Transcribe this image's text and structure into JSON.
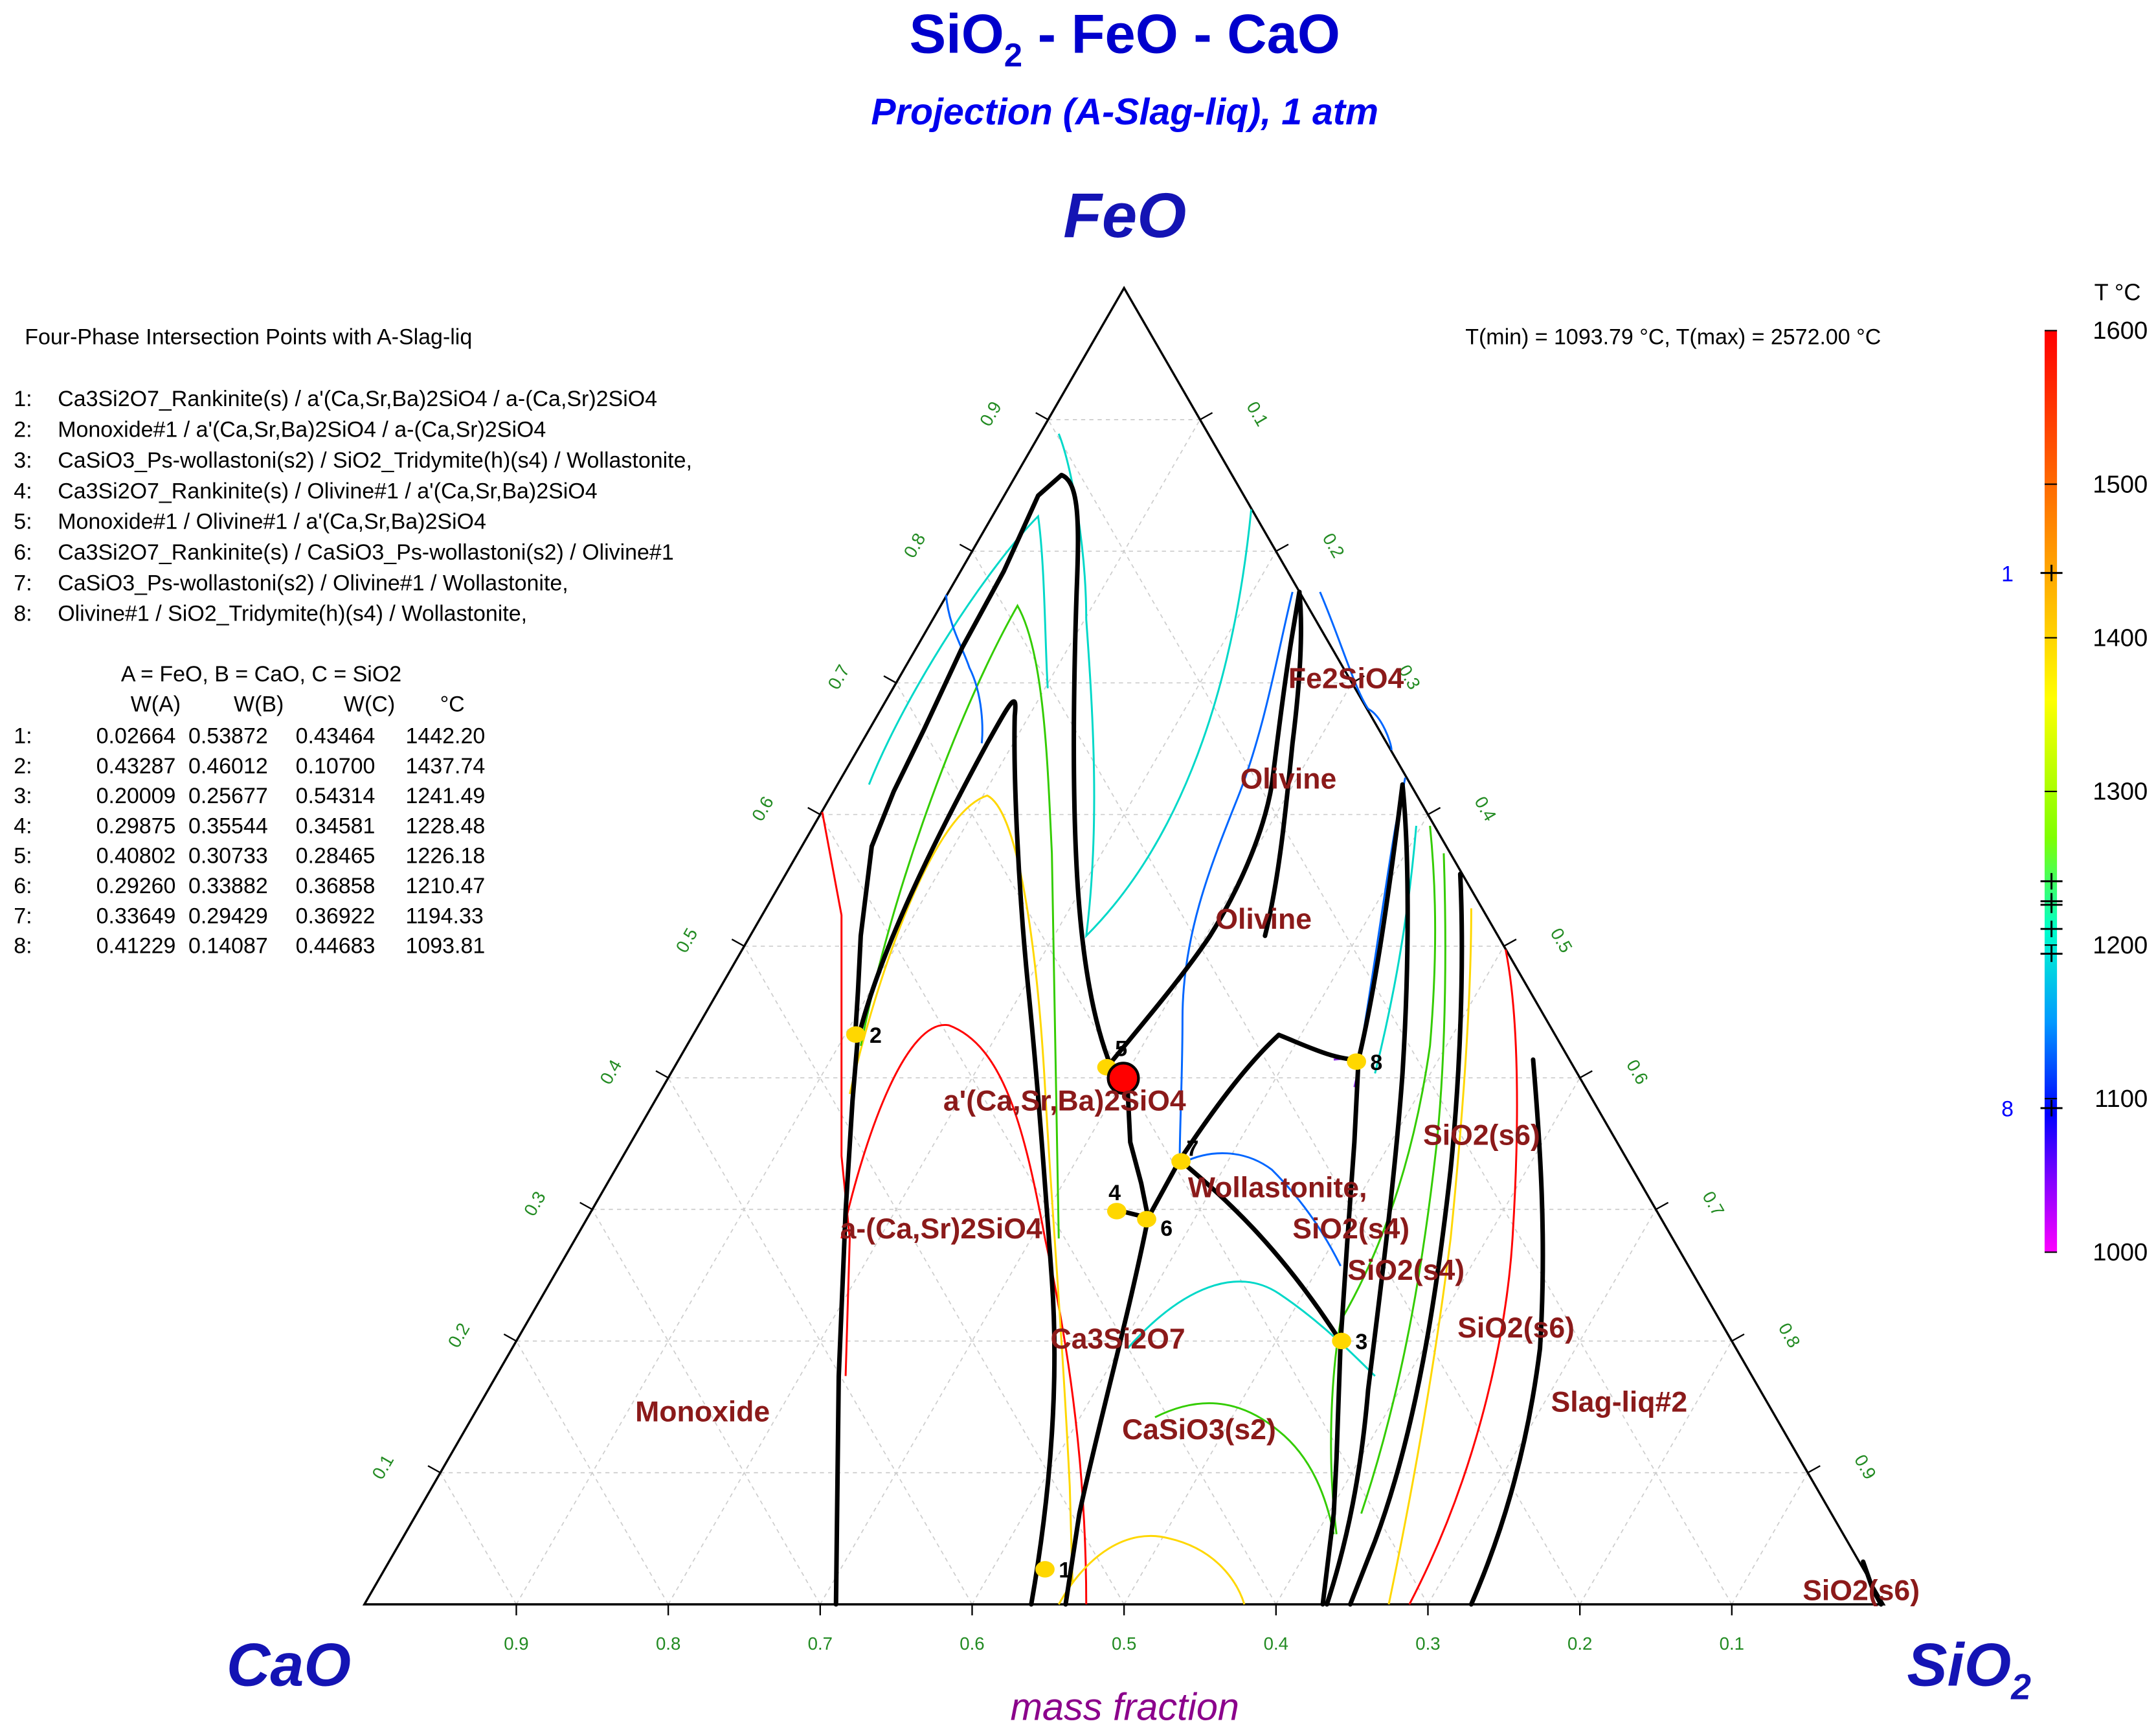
{
  "title": {
    "p1": "SiO",
    "sub1": "2",
    "p2": " - FeO - CaO"
  },
  "subtitle": "Projection (A-Slag-liq), 1 atm",
  "corners": {
    "top": "FeO",
    "left": "CaO",
    "right": "SiO",
    "right_sub": "2"
  },
  "axis_label": "mass fraction",
  "temp_range": "T(min) = 1093.79 °C, T(max) = 2572.00 °C",
  "legend": {
    "title": "Four-Phase Intersection Points with A-Slag-liq",
    "items": [
      {
        "num": "1:",
        "text": "Ca3Si2O7_Rankinite(s) / a'(Ca,Sr,Ba)2SiO4 / a-(Ca,Sr)2SiO4"
      },
      {
        "num": "2:",
        "text": "Monoxide#1 / a'(Ca,Sr,Ba)2SiO4 / a-(Ca,Sr)2SiO4"
      },
      {
        "num": "3:",
        "text": "CaSiO3_Ps-wollastoni(s2) / SiO2_Tridymite(h)(s4) / Wollastonite,"
      },
      {
        "num": "4:",
        "text": "Ca3Si2O7_Rankinite(s) / Olivine#1 / a'(Ca,Sr,Ba)2SiO4"
      },
      {
        "num": "5:",
        "text": "Monoxide#1 / Olivine#1 / a'(Ca,Sr,Ba)2SiO4"
      },
      {
        "num": "6:",
        "text": "Ca3Si2O7_Rankinite(s) / CaSiO3_Ps-wollastoni(s2) / Olivine#1"
      },
      {
        "num": "7:",
        "text": "CaSiO3_Ps-wollastoni(s2) / Olivine#1 / Wollastonite,"
      },
      {
        "num": "8:",
        "text": "Olivine#1 / SiO2_Tridymite(h)(s4) / Wollastonite,"
      }
    ]
  },
  "table": {
    "definition": "A = FeO,  B = CaO,  C = SiO2",
    "headers": [
      "W(A)",
      "W(B)",
      "W(C)",
      "°C"
    ],
    "rows": [
      {
        "num": "1:",
        "wa": "0.02664",
        "wb": "0.53872",
        "wc": "0.43464",
        "t": "1442.20"
      },
      {
        "num": "2:",
        "wa": "0.43287",
        "wb": "0.46012",
        "wc": "0.10700",
        "t": "1437.74"
      },
      {
        "num": "3:",
        "wa": "0.20009",
        "wb": "0.25677",
        "wc": "0.54314",
        "t": "1241.49"
      },
      {
        "num": "4:",
        "wa": "0.29875",
        "wb": "0.35544",
        "wc": "0.34581",
        "t": "1228.48"
      },
      {
        "num": "5:",
        "wa": "0.40802",
        "wb": "0.30733",
        "wc": "0.28465",
        "t": "1226.18"
      },
      {
        "num": "6:",
        "wa": "0.29260",
        "wb": "0.33882",
        "wc": "0.36858",
        "t": "1210.47"
      },
      {
        "num": "7:",
        "wa": "0.33649",
        "wb": "0.29429",
        "wc": "0.36922",
        "t": "1194.33"
      },
      {
        "num": "8:",
        "wa": "0.41229",
        "wb": "0.14087",
        "wc": "0.44683",
        "t": "1093.81"
      }
    ]
  },
  "axes": {
    "left_ticks": [
      "0.1",
      "0.2",
      "0.3",
      "0.4",
      "0.5",
      "0.6",
      "0.7",
      "0.8",
      "0.9"
    ],
    "right_ticks": [
      "0.1",
      "0.2",
      "0.3",
      "0.4",
      "0.5",
      "0.6",
      "0.7",
      "0.8",
      "0.9"
    ],
    "bottom_ticks": [
      "0.9",
      "0.8",
      "0.7",
      "0.6",
      "0.5",
      "0.4",
      "0.3",
      "0.2",
      "0.1"
    ],
    "tick_color": "#228b22"
  },
  "phase_labels": [
    "Fe2SiO4",
    "Olivine",
    "Olivine",
    "a'(Ca,Sr,Ba)2SiO4",
    "Wollastonite,",
    "SiO2(s4)",
    "SiO2(s4)",
    "a-(Ca,Sr)2SiO4",
    "Ca3Si2O7",
    "SiO2(s6)",
    "SiO2(s6)",
    "Monoxide",
    "CaSiO3(s2)",
    "Slag-liq#2",
    "SiO2(s6)"
  ],
  "point_labels": [
    "1",
    "2",
    "3",
    "4",
    "5",
    "6",
    "7",
    "8"
  ],
  "points": [
    {
      "label": "1",
      "a": 0.02664,
      "c": 0.43464
    },
    {
      "label": "2",
      "a": 0.43287,
      "c": 0.107
    },
    {
      "label": "3",
      "a": 0.20009,
      "c": 0.54314
    },
    {
      "label": "4",
      "a": 0.29875,
      "c": 0.34581
    },
    {
      "label": "5",
      "a": 0.40802,
      "c": 0.28465
    },
    {
      "label": "6",
      "a": 0.2926,
      "c": 0.36858
    },
    {
      "label": "7",
      "a": 0.33649,
      "c": 0.36922
    },
    {
      "label": "8",
      "a": 0.41229,
      "c": 0.44683
    }
  ],
  "point_color": "#ffd700",
  "marker_color": "#ff0000",
  "colorbar": {
    "title": "T °C",
    "ticks": [
      "1600",
      "1500",
      "1400",
      "1300",
      "1200",
      "1100",
      "1000"
    ],
    "min": 1000,
    "max": 1600,
    "mark_labels": [
      {
        "label": "1",
        "t": 1442.2
      },
      {
        "label": "8",
        "t": 1093.81
      }
    ],
    "mark_temps": [
      1442.2,
      1241.49,
      1228.48,
      1226.18,
      1210.47,
      1194.33,
      1093.81
    ],
    "mark_label_color": "#0000ff"
  }
}
